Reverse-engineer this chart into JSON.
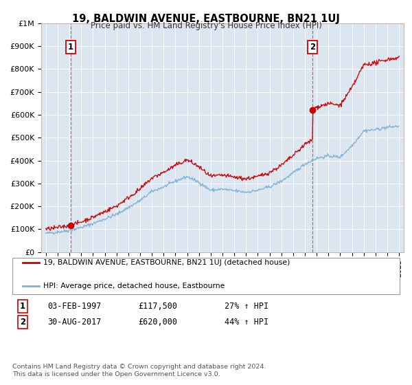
{
  "title": "19, BALDWIN AVENUE, EASTBOURNE, BN21 1UJ",
  "subtitle": "Price paid vs. HM Land Registry's House Price Index (HPI)",
  "background_color": "#dce6f0",
  "plot_bg_color": "#dce6f0",
  "x_start_year": 1995,
  "x_end_year": 2025,
  "y_min": 0,
  "y_max": 1000000,
  "y_ticks": [
    0,
    100000,
    200000,
    300000,
    400000,
    500000,
    600000,
    700000,
    800000,
    900000,
    1000000
  ],
  "y_tick_labels": [
    "£0",
    "£100K",
    "£200K",
    "£300K",
    "£400K",
    "£500K",
    "£600K",
    "£700K",
    "£800K",
    "£900K",
    "£1M"
  ],
  "sale1_year": 1997.09,
  "sale1_price": 117500,
  "sale1_label": "1",
  "sale2_year": 2017.66,
  "sale2_price": 620000,
  "sale2_label": "2",
  "sale1_date": "03-FEB-1997",
  "sale1_amount": "£117,500",
  "sale1_hpi": "27% ↑ HPI",
  "sale2_date": "30-AUG-2017",
  "sale2_amount": "£620,000",
  "sale2_hpi": "44% ↑ HPI",
  "legend_line1": "19, BALDWIN AVENUE, EASTBOURNE, BN21 1UJ (detached house)",
  "legend_line2": "HPI: Average price, detached house, Eastbourne",
  "footer": "Contains HM Land Registry data © Crown copyright and database right 2024.\nThis data is licensed under the Open Government Licence v3.0.",
  "line_color_red": "#cc0000",
  "line_color_blue": "#7bafd4",
  "marker_color": "#cc0000"
}
